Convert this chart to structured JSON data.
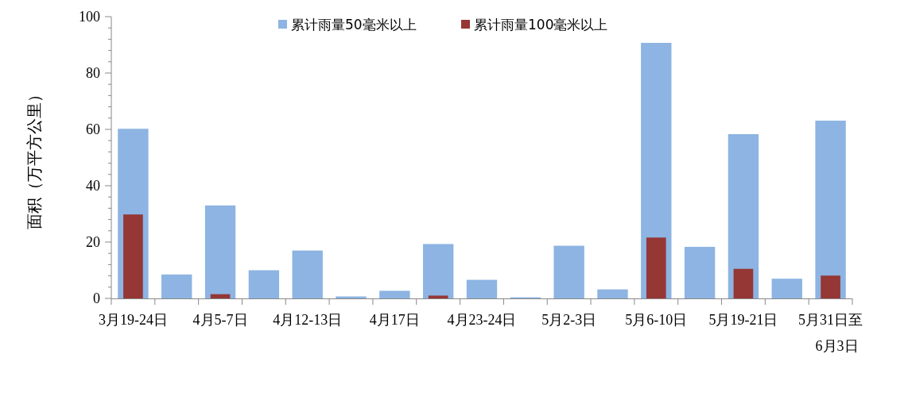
{
  "chart_data": {
    "type": "bar",
    "ylabel": "面积（万平方公里）",
    "categories": [
      "3月19-24日",
      null,
      "4月5-7日",
      null,
      "4月12-13日",
      null,
      "4月17日",
      null,
      "4月23-24日",
      null,
      "5月2-3日",
      null,
      "5月6-10日",
      null,
      "5月19-21日",
      null,
      "5月31日至6月3日"
    ],
    "series": [
      {
        "name": "累计雨量50毫米以上",
        "color": "#8db4e2",
        "values": [
          60.2,
          8.5,
          33,
          10,
          17,
          0.7,
          2.7,
          19.3,
          6.6,
          0.4,
          18.7,
          3.2,
          90.7,
          18.3,
          58.3,
          7.0,
          63.1
        ]
      },
      {
        "name": "累计雨量100毫米以上",
        "color": "#953735",
        "values": [
          29.8,
          null,
          1.5,
          null,
          null,
          null,
          null,
          1.0,
          null,
          null,
          null,
          null,
          21.6,
          null,
          10.5,
          null,
          8.1
        ]
      }
    ],
    "ylim": [
      0,
      100
    ],
    "yticks": [
      0,
      20,
      40,
      60,
      80,
      100
    ],
    "grid": false,
    "legend": "top"
  }
}
